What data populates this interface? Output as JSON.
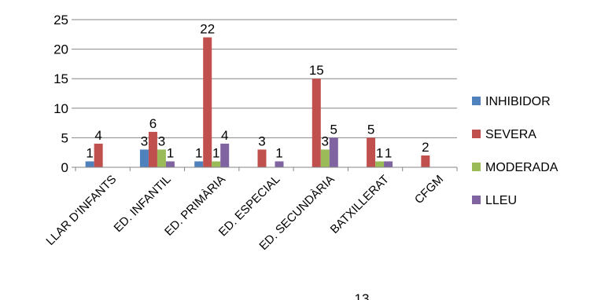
{
  "chart_data": {
    "type": "bar",
    "categories": [
      "LLAR D'INFANTS",
      "ED. INFANTIL",
      "ED. PRIMÀRIA",
      "ED. ESPECIAL",
      "ED. SECUNDÀRIA",
      "BATXILLERAT",
      "CFGM"
    ],
    "series": [
      {
        "name": "INHIBIDOR",
        "color": "#4F81BD",
        "values": [
          1,
          3,
          1,
          null,
          null,
          null,
          null
        ]
      },
      {
        "name": "SEVERA",
        "color": "#C0504D",
        "values": [
          4,
          6,
          22,
          3,
          15,
          5,
          2
        ]
      },
      {
        "name": "MODERADA",
        "color": "#9BBB59",
        "values": [
          null,
          3,
          1,
          null,
          3,
          1,
          null
        ]
      },
      {
        "name": "LLEU",
        "color": "#8064A2",
        "values": [
          null,
          1,
          4,
          1,
          5,
          1,
          null
        ]
      }
    ],
    "ylim": [
      0,
      25
    ],
    "yticks": [
      0,
      5,
      10,
      15,
      20,
      25
    ],
    "grid": true,
    "legend": "right",
    "footer": "13"
  }
}
